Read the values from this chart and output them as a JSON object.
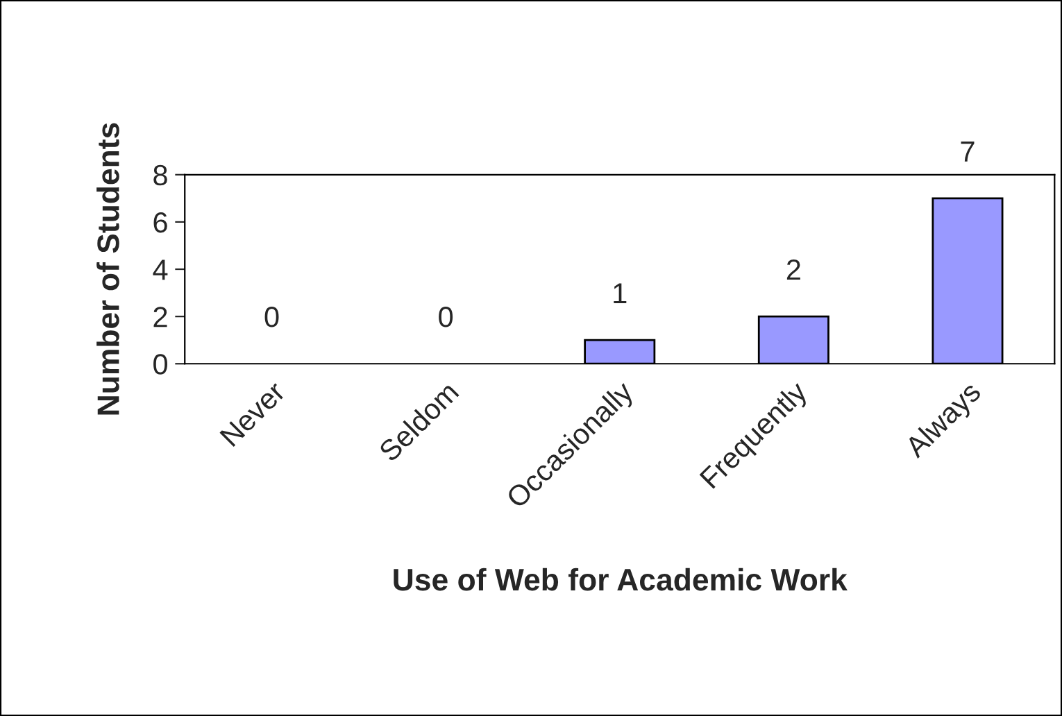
{
  "chart_data": {
    "type": "bar",
    "xlabel": "Use of Web for Academic Work",
    "ylabel": "Number of Students",
    "categories": [
      "Never",
      "Seldom",
      "Occasionally",
      "Frequently",
      "Always"
    ],
    "values": [
      0,
      0,
      1,
      2,
      7
    ],
    "color": "#9999ff",
    "ylim": [
      0,
      8
    ],
    "yticks": [
      0,
      2,
      4,
      6,
      8
    ],
    "grid": false,
    "data_labels": true
  }
}
